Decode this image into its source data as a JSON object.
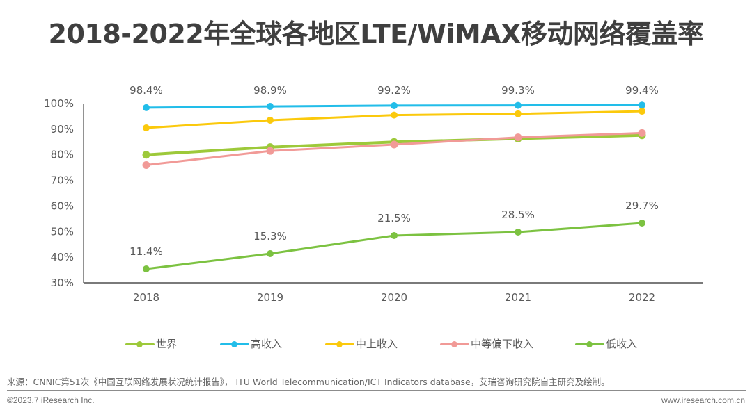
{
  "title": "2018-2022年全球各地区LTE/WiMAX移动网络覆盖率",
  "chart_data": {
    "type": "line",
    "title": "2018-2022年全球各地区LTE/WiMAX移动网络覆盖率",
    "xlabel": "",
    "ylabel": "",
    "x": [
      "2018",
      "2019",
      "2020",
      "2021",
      "2022"
    ],
    "ylim": [
      30,
      100
    ],
    "yticks": [
      "30%",
      "40%",
      "50%",
      "60%",
      "70%",
      "80%",
      "90%",
      "100%"
    ],
    "ytick_values": [
      30,
      40,
      50,
      60,
      70,
      80,
      90,
      100
    ],
    "grid": false,
    "legend_position": "bottom",
    "series": [
      {
        "name": "世界",
        "color": "#9dc93a",
        "values": [
          80.0,
          83.0,
          85.0,
          86.3,
          87.6
        ],
        "labels": null
      },
      {
        "name": "高收入",
        "color": "#22bde9",
        "values": [
          98.4,
          98.9,
          99.2,
          99.3,
          99.4
        ],
        "labels": [
          "98.4%",
          "98.9%",
          "99.2%",
          "99.3%",
          "99.4%"
        ]
      },
      {
        "name": "中上收入",
        "color": "#fbc90c",
        "values": [
          90.5,
          93.5,
          95.5,
          96.0,
          97.0
        ],
        "labels": null
      },
      {
        "name": "中等偏下收入",
        "color": "#f19a97",
        "values": [
          76.0,
          81.5,
          84.0,
          86.8,
          88.5
        ],
        "labels": null
      },
      {
        "name": "低收入",
        "color": "#7cc241",
        "values": [
          11.4,
          15.3,
          21.5,
          28.5,
          29.7
        ],
        "labels": [
          "11.4%",
          "15.3%",
          "21.5%",
          "28.5%",
          "29.7%"
        ],
        "secondary_scale": true
      }
    ]
  },
  "footer": {
    "source": "来源：CNNIC第51次《中国互联网络发展状况统计报告》， ITU World Telecommunication/ICT Indicators database，艾瑞咨询研究院自主研究及绘制。",
    "copyright": "©2023.7 iResearch Inc.",
    "website": "www.iresearch.com.cn"
  }
}
